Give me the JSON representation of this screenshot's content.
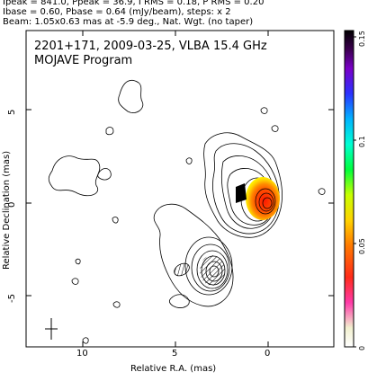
{
  "header": {
    "line1": "Ipeak = 841.0, Ppeak = 36.9, I RMS = 0.18, P RMS = 0.20",
    "line2": "Ibase = 0.60, Pbase = 0.64 (mJy/beam), steps: x 2",
    "line3": "Beam: 1.05x0.63 mas at -5.9 deg., Nat. Wgt. (no taper)"
  },
  "plot": {
    "title_line1": "2201+171, 2009-03-25, VLBA 15.4 GHz",
    "title_line2": "MOJAVE Program",
    "x_label": "Relative R.A. (mas)",
    "y_label": "Relative Declination (mas)",
    "x_ticks": [
      "10",
      "5",
      "0"
    ],
    "y_ticks": [
      "5",
      "0",
      "-5"
    ],
    "colorbar_ticks": [
      "0",
      "0.05",
      "0.1",
      "0.15"
    ]
  }
}
